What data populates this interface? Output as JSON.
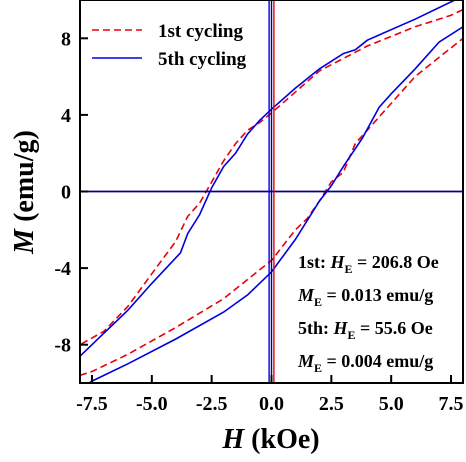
{
  "chart_data": {
    "type": "line",
    "title": "",
    "xlabel_symbol": "H",
    "xlabel_unit": " (kOe)",
    "ylabel_symbol": "M",
    "ylabel_unit": " (emu/g)",
    "xlim": [
      -8,
      8
    ],
    "ylim": [
      -10,
      10
    ],
    "xticks": [
      -7.5,
      -5.0,
      -2.5,
      0.0,
      2.5,
      5.0,
      7.5
    ],
    "xtick_labels": [
      "-7.5",
      "-5.0",
      "-2.5",
      "0.0",
      "2.5",
      "5.0",
      "7.5"
    ],
    "yticks": [
      -8,
      -4,
      0,
      4,
      8
    ],
    "ytick_labels": [
      "-8",
      "-4",
      "0",
      "4",
      "8"
    ],
    "grid": false,
    "legend_position": "top-left",
    "reference_lines": {
      "y_zero_color": "#00008b",
      "x_zero_color": "#00008b"
    },
    "series": [
      {
        "name": "1st cycling",
        "color": "#e8000b",
        "style": "dashed",
        "descending": [
          [
            8,
            9.5
          ],
          [
            7.5,
            9.2
          ],
          [
            6,
            8.6
          ],
          [
            4,
            7.6
          ],
          [
            2,
            6.3
          ],
          [
            0,
            4.1
          ],
          [
            -0.5,
            3.6
          ],
          [
            -1,
            3.2
          ],
          [
            -1.5,
            2.5
          ],
          [
            -2,
            1.6
          ],
          [
            -2.5,
            0.5
          ],
          [
            -3,
            -0.6
          ],
          [
            -3.5,
            -1.3
          ],
          [
            -4,
            -2.6
          ],
          [
            -5,
            -4.3
          ],
          [
            -6,
            -6.0
          ],
          [
            -7,
            -7.3
          ],
          [
            -8,
            -8.0
          ]
        ],
        "ascending": [
          [
            -8,
            -9.6
          ],
          [
            -7.5,
            -9.4
          ],
          [
            -6,
            -8.5
          ],
          [
            -4,
            -7.1
          ],
          [
            -2,
            -5.6
          ],
          [
            0,
            -3.6
          ],
          [
            1,
            -2.0
          ],
          [
            1.5,
            -1.4
          ],
          [
            2,
            -0.5
          ],
          [
            2.5,
            0.5
          ],
          [
            3,
            1.0
          ],
          [
            3.5,
            2.5
          ],
          [
            4,
            3.2
          ],
          [
            5,
            4.6
          ],
          [
            6,
            6.0
          ],
          [
            7,
            7.0
          ],
          [
            8,
            8.0
          ]
        ],
        "vertical_line_x": 0.1
      },
      {
        "name": "5th cycling",
        "color": "#0000e0",
        "style": "solid",
        "descending": [
          [
            8,
            10.2
          ],
          [
            7.5,
            9.9
          ],
          [
            6,
            9.0
          ],
          [
            4,
            7.9
          ],
          [
            3.5,
            7.4
          ],
          [
            3,
            7.2
          ],
          [
            2,
            6.4
          ],
          [
            1,
            5.4
          ],
          [
            0,
            4.3
          ],
          [
            -0.5,
            3.7
          ],
          [
            -1,
            3.0
          ],
          [
            -1.5,
            2.0
          ],
          [
            -2,
            1.3
          ],
          [
            -2.5,
            0.2
          ],
          [
            -3,
            -1.2
          ],
          [
            -3.5,
            -2.2
          ],
          [
            -3.8,
            -3.2
          ],
          [
            -5,
            -4.8
          ],
          [
            -6,
            -6.2
          ],
          [
            -7,
            -7.4
          ],
          [
            -8,
            -8.6
          ]
        ],
        "ascending": [
          [
            -8,
            -10.3
          ],
          [
            -7.5,
            -9.9
          ],
          [
            -6,
            -9.0
          ],
          [
            -4,
            -7.7
          ],
          [
            -2,
            -6.3
          ],
          [
            -1,
            -5.4
          ],
          [
            0,
            -4.2
          ],
          [
            1,
            -2.5
          ],
          [
            2,
            -0.5
          ],
          [
            2.5,
            0.3
          ],
          [
            3,
            1.3
          ],
          [
            3.8,
            2.8
          ],
          [
            4.5,
            4.4
          ],
          [
            5,
            5.1
          ],
          [
            6,
            6.4
          ],
          [
            7,
            7.8
          ],
          [
            8,
            8.6
          ]
        ],
        "vertical_line_x": -0.1
      }
    ],
    "annotations": [
      {
        "prefix": "1st: ",
        "symbol": "H",
        "sub": "E",
        "value": " = 206.8 Oe"
      },
      {
        "prefix": "",
        "symbol": "M",
        "sub": "E",
        "value": " = 0.013 emu/g"
      },
      {
        "prefix": "5th: ",
        "symbol": "H",
        "sub": "E",
        "value": " = 55.6 Oe"
      },
      {
        "prefix": "",
        "symbol": "M",
        "sub": "E",
        "value": " = 0.004 emu/g"
      }
    ]
  }
}
